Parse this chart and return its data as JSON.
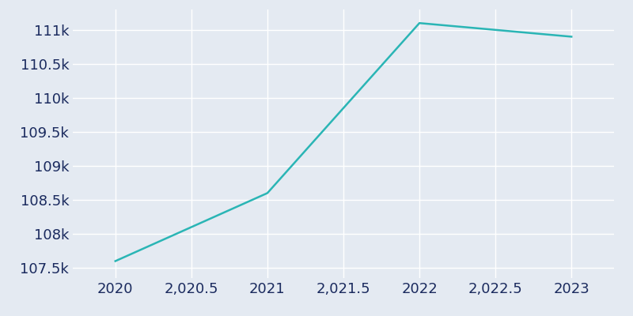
{
  "x": [
    2020,
    2021,
    2022,
    2023
  ],
  "y": [
    107600,
    108600,
    111100,
    110900
  ],
  "line_color": "#2ab5b5",
  "background_color": "#e4eaf2",
  "grid_color": "#ffffff",
  "tick_color": "#1a2a5e",
  "ylim": [
    107350,
    111300
  ],
  "xlim": [
    2019.72,
    2023.28
  ],
  "line_width": 1.8,
  "yticks": [
    107500,
    108000,
    108500,
    109000,
    109500,
    110000,
    110500,
    111000
  ],
  "xticks": [
    2020,
    2020.5,
    2021,
    2021.5,
    2022,
    2022.5,
    2023
  ],
  "tick_fontsize": 13
}
